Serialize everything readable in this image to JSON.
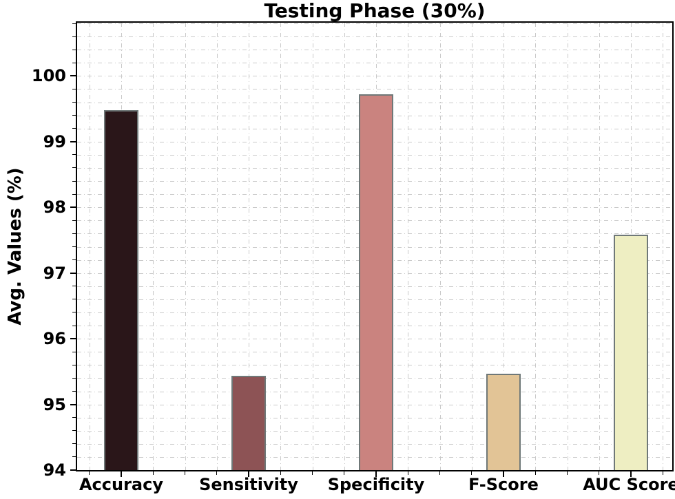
{
  "chart_data": {
    "type": "bar",
    "title": "Testing Phase (30%)",
    "xlabel": "",
    "ylabel": "Avg. Values (%)",
    "categories": [
      "Accuracy",
      "Sensitivity",
      "Specificity",
      "F-Score",
      "AUC Score"
    ],
    "values": [
      99.48,
      95.44,
      99.72,
      95.47,
      97.58
    ],
    "bar_colors": [
      "#2a1619",
      "#8d5355",
      "#ca837f",
      "#e2c496",
      "#eeeec2"
    ],
    "bar_edge_color": "#6f7878",
    "ylim": [
      94,
      100.81
    ],
    "yticks": [
      94,
      95,
      96,
      97,
      98,
      99,
      100
    ],
    "y_minor_step": 0.2,
    "x_minor_divisions": 4,
    "grid": {
      "on": true,
      "style": "dash-dot",
      "color": "#c9c9c9"
    },
    "legend_position": "none",
    "axis_color": "#000000",
    "text_color": "#000000",
    "background_color": "#ffffff"
  }
}
